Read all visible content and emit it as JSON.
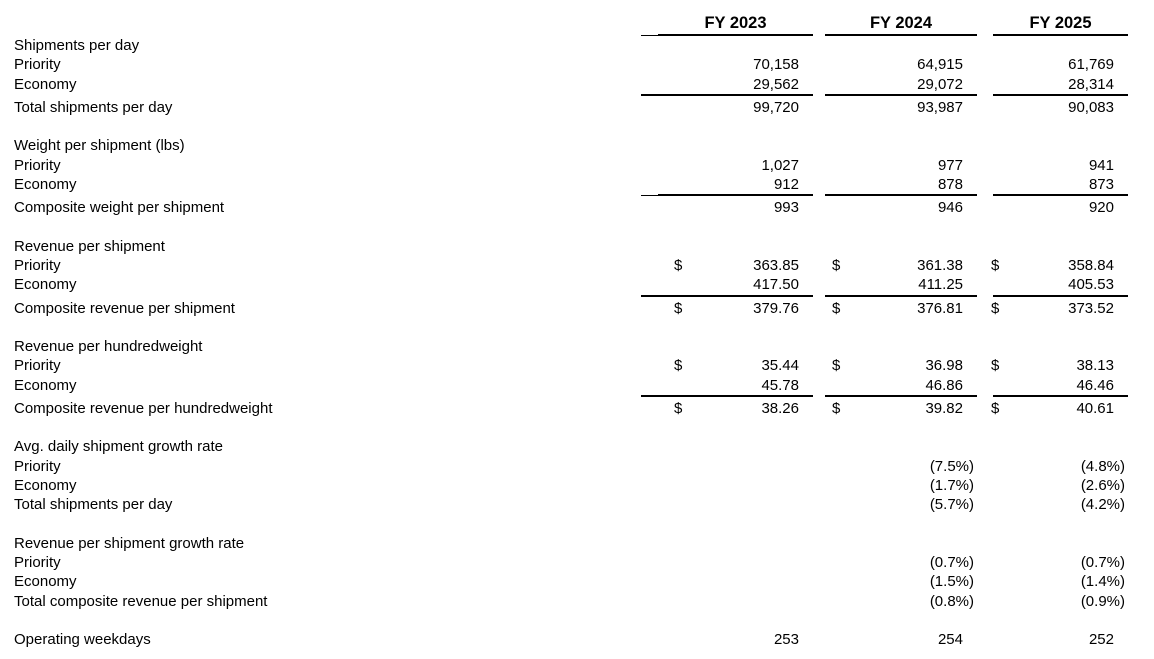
{
  "colors": {
    "background": "#ffffff",
    "text": "#000000",
    "rule": "#000000"
  },
  "table": {
    "columns": [
      "FY 2023",
      "FY 2024",
      "FY 2025"
    ],
    "currency_symbol": "$",
    "sections": [
      {
        "title": "Shipments per day",
        "rows": [
          {
            "label": "Priority",
            "indent": 1,
            "values": [
              "70,158",
              "64,915",
              "61,769"
            ]
          },
          {
            "label": "Economy",
            "indent": 1,
            "values": [
              "29,562",
              "29,072",
              "28,314"
            ],
            "rule_below": true
          },
          {
            "label": "Total shipments per day",
            "indent": 2,
            "values": [
              "99,720",
              "93,987",
              "90,083"
            ],
            "total": true
          }
        ]
      },
      {
        "title": "Weight per shipment (lbs)",
        "rows": [
          {
            "label": "Priority",
            "indent": 1,
            "values": [
              "1,027",
              "977",
              "941"
            ]
          },
          {
            "label": "Economy",
            "indent": 1,
            "values": [
              "912",
              "878",
              "873"
            ],
            "rule_below": true
          },
          {
            "label": "Composite weight per shipment",
            "indent": 2,
            "values": [
              "993",
              "946",
              "920"
            ],
            "total": true
          }
        ]
      },
      {
        "title": "Revenue per shipment",
        "rows": [
          {
            "label": "Priority",
            "indent": 1,
            "values": [
              "363.85",
              "361.38",
              "358.84"
            ],
            "dollar": true
          },
          {
            "label": "Economy",
            "indent": 1,
            "values": [
              "417.50",
              "411.25",
              "405.53"
            ],
            "rule_below": true
          },
          {
            "label": "Composite revenue per shipment",
            "indent": 2,
            "values": [
              "379.76",
              "376.81",
              "373.52"
            ],
            "dollar": true,
            "total": true
          }
        ]
      },
      {
        "title": "Revenue per hundredweight",
        "rows": [
          {
            "label": "Priority",
            "indent": 1,
            "values": [
              "35.44",
              "36.98",
              "38.13"
            ],
            "dollar": true
          },
          {
            "label": "Economy",
            "indent": 1,
            "values": [
              "45.78",
              "46.86",
              "46.46"
            ],
            "rule_below": true
          },
          {
            "label": "Composite revenue per hundredweight",
            "indent": 2,
            "values": [
              "38.26",
              "39.82",
              "40.61"
            ],
            "dollar": true,
            "total": true
          }
        ]
      },
      {
        "title": "Avg. daily shipment growth rate",
        "rows": [
          {
            "label": "Priority",
            "indent": 1,
            "values": [
              "",
              "(7.5%)",
              "(4.8%)"
            ]
          },
          {
            "label": "Economy",
            "indent": 1,
            "values": [
              "",
              "(1.7%)",
              "(2.6%)"
            ]
          },
          {
            "label": "Total shipments per day",
            "indent": 2,
            "values": [
              "",
              "(5.7%)",
              "(4.2%)"
            ],
            "total": true
          }
        ]
      },
      {
        "title": "Revenue per shipment growth rate",
        "rows": [
          {
            "label": "Priority",
            "indent": 1,
            "values": [
              "",
              "(0.7%)",
              "(0.7%)"
            ]
          },
          {
            "label": "Economy",
            "indent": 1,
            "values": [
              "",
              "(1.5%)",
              "(1.4%)"
            ]
          },
          {
            "label": "Total composite revenue per shipment",
            "indent": 2,
            "values": [
              "",
              "(0.8%)",
              "(0.9%)"
            ],
            "total": true
          }
        ]
      },
      {
        "title": null,
        "rows": [
          {
            "label": "Operating weekdays",
            "indent": 0,
            "values": [
              "253",
              "254",
              "252"
            ]
          }
        ]
      }
    ]
  }
}
